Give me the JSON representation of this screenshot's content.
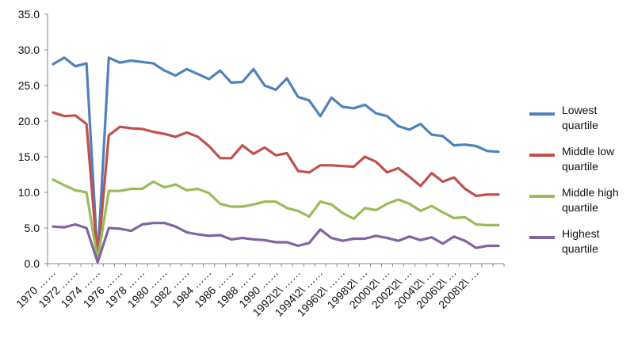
{
  "chart_data": {
    "type": "line",
    "title": "",
    "xlabel": "",
    "ylabel": "",
    "ylim": [
      0,
      35
    ],
    "yticks": [
      "0.0",
      "5.0",
      "10.0",
      "15.0",
      "20.0",
      "25.0",
      "30.0",
      "35.0"
    ],
    "x_tick_labels": [
      "1970 ……",
      "1972 ……",
      "1974 ……",
      "1976 ……",
      "1978 ……",
      "1980 ……",
      "1982 ……",
      "1984 ……",
      "1986 ……",
      "1988 ……",
      "1990 ……",
      "1992\\2\\ ……",
      "1994\\2\\ ……",
      "1996\\2\\ ……",
      "1998\\2\\ …",
      "2000\\2\\ …",
      "2002\\2\\ …",
      "2004\\2\\ …",
      "2006\\2\\ …",
      "2008\\2\\ …"
    ],
    "n_points": 41,
    "legend_position": "right",
    "series": [
      {
        "name": "Lowest quartile",
        "color": "#4F81BD",
        "values": [
          28.0,
          28.9,
          27.7,
          28.1,
          0.5,
          28.9,
          28.2,
          28.5,
          28.3,
          28.1,
          27.1,
          26.4,
          27.3,
          26.6,
          25.9,
          27.1,
          25.4,
          25.5,
          27.3,
          25.0,
          24.4,
          26.0,
          23.4,
          22.9,
          20.7,
          23.3,
          22.0,
          21.8,
          22.3,
          21.1,
          20.7,
          19.3,
          18.8,
          19.6,
          18.1,
          17.9,
          16.6,
          16.7,
          16.5,
          15.8,
          15.7
        ]
      },
      {
        "name": "Middle low quartile",
        "color": "#C0504D",
        "values": [
          21.2,
          20.7,
          20.8,
          19.6,
          0.5,
          18.0,
          19.2,
          19.0,
          18.9,
          18.5,
          18.2,
          17.8,
          18.4,
          17.8,
          16.5,
          14.8,
          14.8,
          16.6,
          15.4,
          16.3,
          15.2,
          15.5,
          13.0,
          12.8,
          13.8,
          13.8,
          13.7,
          13.6,
          15.0,
          14.3,
          12.8,
          13.4,
          12.2,
          10.9,
          12.7,
          11.5,
          12.1,
          10.5,
          9.5,
          9.7,
          9.7
        ]
      },
      {
        "name": "Middle high quartile",
        "color": "#9BBB59",
        "values": [
          11.8,
          11.0,
          10.3,
          10.0,
          0.5,
          10.2,
          10.2,
          10.5,
          10.5,
          11.5,
          10.7,
          11.1,
          10.3,
          10.5,
          9.9,
          8.4,
          8.0,
          8.0,
          8.3,
          8.7,
          8.7,
          7.8,
          7.4,
          6.6,
          8.7,
          8.3,
          7.1,
          6.3,
          7.8,
          7.5,
          8.4,
          9.0,
          8.4,
          7.4,
          8.1,
          7.2,
          6.4,
          6.5,
          5.5,
          5.4,
          5.4
        ]
      },
      {
        "name": "Highest quartile",
        "color": "#8064A2",
        "values": [
          5.2,
          5.1,
          5.5,
          5.0,
          0.2,
          5.0,
          4.9,
          4.6,
          5.5,
          5.7,
          5.7,
          5.2,
          4.4,
          4.1,
          3.9,
          4.0,
          3.4,
          3.6,
          3.4,
          3.3,
          3.0,
          3.0,
          2.5,
          2.9,
          4.8,
          3.6,
          3.2,
          3.5,
          3.5,
          3.9,
          3.6,
          3.2,
          3.8,
          3.3,
          3.7,
          2.8,
          3.8,
          3.2,
          2.2,
          2.5,
          2.5
        ]
      }
    ]
  }
}
